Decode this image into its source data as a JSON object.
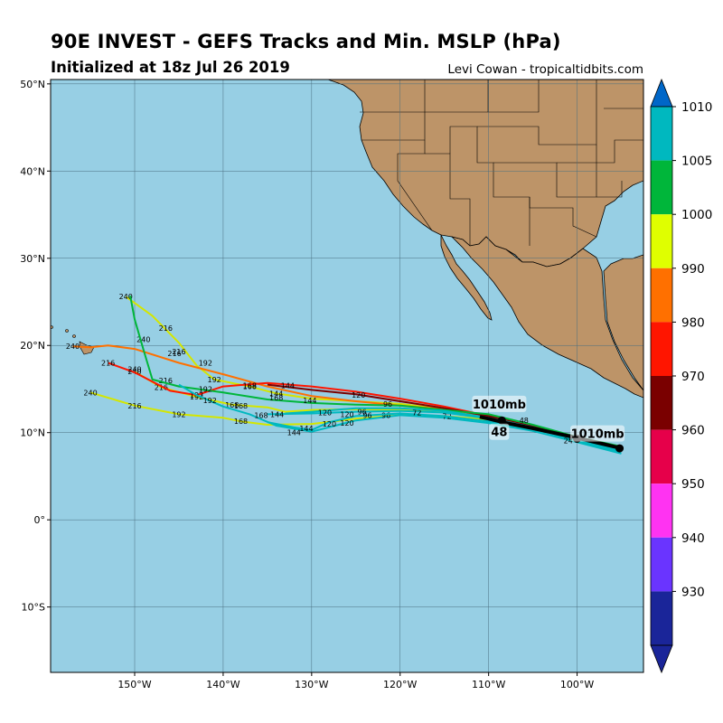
{
  "header": {
    "title": "90E INVEST - GEFS Tracks and Min. MSLP (hPa)",
    "subtitle": "Initialized at 18z Jul 26 2019",
    "credit": "Levi Cowan - tropicaltidbits.com"
  },
  "map": {
    "lon_range": [
      -159.5,
      -92.5
    ],
    "lat_range": [
      -17.5,
      50.5
    ],
    "lon_ticks": [
      {
        "value": -150,
        "label": "150°W"
      },
      {
        "value": -140,
        "label": "140°W"
      },
      {
        "value": -130,
        "label": "130°W"
      },
      {
        "value": -120,
        "label": "120°W"
      },
      {
        "value": -110,
        "label": "110°W"
      },
      {
        "value": -100,
        "label": "100°W"
      }
    ],
    "lat_ticks": [
      {
        "value": 50,
        "label": "50°N"
      },
      {
        "value": 40,
        "label": "40°N"
      },
      {
        "value": 30,
        "label": "30°N"
      },
      {
        "value": 20,
        "label": "20°N"
      },
      {
        "value": 10,
        "label": "10°N"
      },
      {
        "value": 0,
        "label": "0°"
      },
      {
        "value": -10,
        "label": "10°S"
      }
    ],
    "ocean_color": "#97cfe4",
    "land_color": "#bd9468",
    "grid": true
  },
  "chart_data": {
    "type": "line",
    "x_axis": "longitude",
    "y_axis": "latitude",
    "series": [
      {
        "color": "#d4e600",
        "points": [
          [
            -95,
            8.2
          ],
          [
            -100,
            9.3
          ],
          [
            -105,
            10.6
          ],
          [
            -110,
            11.8
          ],
          [
            -115,
            12.4
          ],
          [
            -120,
            12.6
          ],
          [
            -125,
            12.7
          ],
          [
            -130,
            12.6
          ],
          [
            -133,
            12.4
          ],
          [
            -135,
            12.9
          ],
          [
            -139,
            13.2
          ],
          [
            -143,
            14.1
          ],
          [
            -147,
            15.2
          ],
          [
            -150,
            17
          ]
        ],
        "labels": [
          {
            "t": "168",
            "at": [
              -139,
              13.2
            ]
          },
          {
            "t": "192",
            "at": [
              -143,
              14.1
            ]
          },
          {
            "t": "216",
            "at": [
              -147,
              15.2
            ]
          },
          {
            "t": "240",
            "at": [
              -150,
              17
            ]
          }
        ]
      },
      {
        "color": "#d4e600",
        "points": [
          [
            -95,
            8.2
          ],
          [
            -100,
            9.3
          ],
          [
            -105,
            10.5
          ],
          [
            -110,
            11.5
          ],
          [
            -115,
            11.9
          ],
          [
            -120,
            12.0
          ],
          [
            -125,
            11.6
          ],
          [
            -130,
            11.0
          ],
          [
            -135,
            10.9
          ],
          [
            -138,
            11.3
          ],
          [
            -140,
            11.7
          ],
          [
            -145,
            12.1
          ],
          [
            -150,
            13.1
          ],
          [
            -155,
            14.6
          ]
        ],
        "labels": [
          {
            "t": "168",
            "at": [
              -138,
              11.3
            ]
          },
          {
            "t": "192",
            "at": [
              -145,
              12.1
            ]
          },
          {
            "t": "216",
            "at": [
              -150,
              13.1
            ]
          },
          {
            "t": "240",
            "at": [
              -155,
              14.6
            ]
          }
        ]
      },
      {
        "color": "#d4e600",
        "points": [
          [
            -95,
            8.2
          ],
          [
            -100,
            9.3
          ],
          [
            -105,
            10.6
          ],
          [
            -110,
            11.8
          ],
          [
            -115,
            12.7
          ],
          [
            -120,
            13.3
          ],
          [
            -125,
            13.6
          ],
          [
            -130,
            13.9
          ],
          [
            -134,
            14.5
          ],
          [
            -137,
            15.3
          ],
          [
            -141,
            16.1
          ],
          [
            -143,
            17.7
          ],
          [
            -145,
            20.3
          ],
          [
            -148,
            23.4
          ],
          [
            -151,
            25.6
          ]
        ],
        "labels": [
          {
            "t": "144",
            "at": [
              -134,
              14.5
            ]
          },
          {
            "t": "168",
            "at": [
              -137,
              15.3
            ]
          },
          {
            "t": "192",
            "at": [
              -141,
              16.1
            ]
          },
          {
            "t": "216",
            "at": [
              -145,
              19.3
            ]
          },
          {
            "t": "216",
            "at": [
              -146.5,
              22.0
            ]
          },
          {
            "t": "240",
            "at": [
              -151,
              25.6
            ]
          }
        ]
      },
      {
        "color": "#ff7000",
        "points": [
          [
            -95,
            8.3
          ],
          [
            -100,
            9.4
          ],
          [
            -105,
            10.7
          ],
          [
            -110,
            11.9
          ],
          [
            -115,
            12.7
          ],
          [
            -120,
            13.1
          ],
          [
            -125,
            13.6
          ],
          [
            -130,
            14.2
          ],
          [
            -135,
            15.3
          ],
          [
            -140,
            16.7
          ],
          [
            -145,
            18.0
          ],
          [
            -150,
            19.6
          ],
          [
            -153,
            20.0
          ],
          [
            -155,
            19.8
          ],
          [
            -157,
            19.9
          ]
        ],
        "labels": [
          {
            "t": "192",
            "at": [
              -142,
              18.0
            ]
          },
          {
            "t": "216",
            "at": [
              -145.5,
              19.1
            ]
          },
          {
            "t": "240",
            "at": [
              -149,
              20.7
            ]
          },
          {
            "t": "240",
            "at": [
              -157,
              19.9
            ]
          }
        ]
      },
      {
        "color": "#ff1500",
        "points": [
          [
            -95,
            8.3
          ],
          [
            -100,
            9.3
          ],
          [
            -105,
            10.6
          ],
          [
            -110,
            11.9
          ],
          [
            -115,
            13.0
          ],
          [
            -120,
            13.9
          ],
          [
            -125,
            14.7
          ],
          [
            -130,
            15.3
          ],
          [
            -135,
            15.7
          ],
          [
            -140,
            15.3
          ],
          [
            -143,
            14.3
          ],
          [
            -146,
            14.8
          ],
          [
            -150,
            16.9
          ],
          [
            -153,
            18.0
          ]
        ],
        "labels": [
          {
            "t": "168",
            "at": [
              -137,
              15.4
            ]
          },
          {
            "t": "192",
            "at": [
              -143,
              14.3
            ]
          },
          {
            "t": "216",
            "at": [
              -146.5,
              16.0
            ]
          },
          {
            "t": "240",
            "at": [
              -150,
              17.3
            ]
          },
          {
            "t": "216",
            "at": [
              -153,
              18.0
            ]
          }
        ]
      },
      {
        "color": "#7a0000",
        "points": [
          [
            -95,
            8.3
          ],
          [
            -100,
            9.4
          ],
          [
            -105,
            10.7
          ],
          [
            -110,
            11.9
          ],
          [
            -115,
            12.8
          ],
          [
            -120,
            13.6
          ],
          [
            -125,
            14.4
          ],
          [
            -130,
            14.9
          ],
          [
            -135,
            15.5
          ]
        ],
        "labels": [
          {
            "t": "120",
            "at": [
              -124.7,
              14.3
            ]
          },
          {
            "t": "144",
            "at": [
              -132.7,
              15.4
            ]
          }
        ]
      },
      {
        "color": "#00b63a",
        "points": [
          [
            -95,
            8.4
          ],
          [
            -100,
            9.5
          ],
          [
            -105,
            10.9
          ],
          [
            -110,
            12.1
          ],
          [
            -115,
            12.6
          ],
          [
            -120,
            13.1
          ],
          [
            -125,
            13.2
          ],
          [
            -130,
            13.4
          ],
          [
            -135,
            13.8
          ],
          [
            -140,
            14.6
          ],
          [
            -145,
            15.3
          ],
          [
            -148,
            16.1
          ],
          [
            -149,
            19.5
          ],
          [
            -150,
            23.0
          ],
          [
            -150.5,
            25.7
          ]
        ],
        "labels": [
          {
            "t": "96",
            "at": [
              -121.4,
              13.3
            ]
          },
          {
            "t": "144",
            "at": [
              -130.2,
              13.7
            ]
          },
          {
            "t": "168",
            "at": [
              -134,
              14.0
            ]
          },
          {
            "t": "192",
            "at": [
              -142,
              15.0
            ]
          }
        ]
      },
      {
        "color": "#00b8bf",
        "points": [
          [
            -95,
            7.8
          ],
          [
            -100,
            9.0
          ],
          [
            -105,
            10.2
          ],
          [
            -110,
            11.1
          ],
          [
            -115,
            11.7
          ],
          [
            -120,
            12.0
          ],
          [
            -125,
            11.4
          ],
          [
            -130,
            10.1
          ],
          [
            -134,
            10.8
          ],
          [
            -137,
            12.1
          ],
          [
            -140,
            13.0
          ],
          [
            -143,
            14.3
          ],
          [
            -145,
            15.5
          ]
        ],
        "labels": [
          {
            "t": "72",
            "at": [
              -114.7,
              11.9
            ]
          },
          {
            "t": "96",
            "at": [
              -121.6,
              12.0
            ]
          },
          {
            "t": "120",
            "at": [
              -126,
              11.1
            ]
          },
          {
            "t": "144",
            "at": [
              -132,
              10.0
            ]
          },
          {
            "t": "168",
            "at": [
              -138,
              13.1
            ]
          },
          {
            "t": "192",
            "at": [
              -141.5,
              13.7
            ]
          }
        ]
      },
      {
        "color": "#00b8bf",
        "points": [
          [
            -95,
            7.6
          ],
          [
            -100,
            8.9
          ],
          [
            -105,
            10.2
          ],
          [
            -110,
            11.3
          ],
          [
            -115,
            11.9
          ],
          [
            -120,
            12.2
          ],
          [
            -125,
            11.9
          ],
          [
            -128,
            11.2
          ],
          [
            -130,
            10.3
          ],
          [
            -132,
            10.6
          ],
          [
            -135,
            11.2
          ]
        ],
        "labels": [
          {
            "t": "96",
            "at": [
              -123.7,
              12.0
            ]
          },
          {
            "t": "120",
            "at": [
              -128,
              11.0
            ]
          },
          {
            "t": "144",
            "at": [
              -130.6,
              10.5
            ]
          }
        ]
      },
      {
        "color": "#00b8bf",
        "points": [
          [
            -95,
            7.9
          ],
          [
            -100,
            9.1
          ],
          [
            -105,
            10.5
          ],
          [
            -110,
            11.6
          ],
          [
            -115,
            12.3
          ],
          [
            -120,
            12.5
          ],
          [
            -125,
            12.4
          ],
          [
            -130,
            12.2
          ],
          [
            -135,
            12.1
          ]
        ],
        "labels": [
          {
            "t": "96",
            "at": [
              -124.3,
              12.4
            ]
          },
          {
            "t": "120",
            "at": [
              -126,
              12.1
            ]
          },
          {
            "t": "72",
            "at": [
              -118.1,
              12.3
            ]
          }
        ]
      },
      {
        "color": "#00b8bf",
        "points": [
          [
            -95,
            8.0
          ],
          [
            -100,
            9.2
          ],
          [
            -105,
            10.6
          ],
          [
            -110,
            11.7
          ],
          [
            -115,
            12.5
          ],
          [
            -120,
            12.8
          ],
          [
            -125,
            12.8
          ],
          [
            -130,
            12.4
          ],
          [
            -133,
            12.2
          ]
        ],
        "labels": [
          {
            "t": "120",
            "at": [
              -128.5,
              12.3
            ]
          },
          {
            "t": "144",
            "at": [
              -133.9,
              12.1
            ]
          },
          {
            "t": "168",
            "at": [
              -135.7,
              12.0
            ]
          }
        ]
      },
      {
        "color": "#000000",
        "width": 4,
        "points": [
          [
            -95,
            8.2
          ],
          [
            -100,
            9.4
          ],
          [
            -105,
            10.5
          ],
          [
            -108,
            11.1
          ],
          [
            -110,
            11.6
          ],
          [
            -111,
            11.8
          ]
        ],
        "labels": [
          {
            "t": "48",
            "at": [
              -106,
              11.4
            ]
          },
          {
            "t": "24",
            "at": [
              -100.5,
              9.5
            ]
          },
          {
            "t": "24",
            "at": [
              -101,
              9.1
            ]
          }
        ]
      }
    ],
    "annotations": [
      {
        "text": "1010mb",
        "lon": -108.8,
        "lat": 13.2
      },
      {
        "text": "48",
        "lon": -108.8,
        "lat": 10.0
      },
      {
        "text": "1010mb",
        "lon": -97.7,
        "lat": 9.8
      }
    ],
    "markers": [
      {
        "lon": -95.2,
        "lat": 8.2
      },
      {
        "lon": -100.0,
        "lat": 9.3
      },
      {
        "lon": -108.5,
        "lat": 11.4
      }
    ],
    "colorbar": {
      "ticks": [
        "1010",
        "1005",
        "1000",
        "990",
        "980",
        "970",
        "960",
        "950",
        "940",
        "930"
      ],
      "colors": [
        "#00b8bf",
        "#00b63a",
        "#dfff00",
        "#ff7000",
        "#ff1500",
        "#7a0000",
        "#e6004a",
        "#ff33f2",
        "#6a34ff",
        "#1a2599"
      ],
      "top_arrow_color": "#0067c8",
      "bottom_arrow_color": "#1a2599"
    }
  }
}
